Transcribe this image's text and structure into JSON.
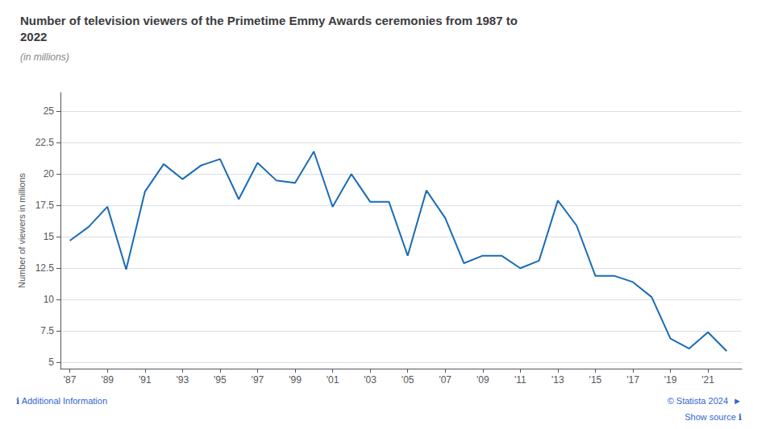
{
  "chart_data": {
    "type": "line",
    "title": "Number of television viewers of the Primetime Emmy Awards ceremonies from 1987 to\n2022",
    "subtitle": "(in millions)",
    "ylabel": "Number of viewers in millions",
    "x": [
      1987,
      1988,
      1989,
      1990,
      1991,
      1992,
      1993,
      1994,
      1995,
      1996,
      1997,
      1998,
      1999,
      2000,
      2001,
      2002,
      2003,
      2004,
      2005,
      2006,
      2007,
      2008,
      2009,
      2010,
      2011,
      2012,
      2013,
      2014,
      2015,
      2016,
      2017,
      2018,
      2019,
      2020,
      2021,
      2022
    ],
    "values": [
      14.7,
      15.8,
      17.4,
      12.4,
      18.6,
      20.8,
      19.6,
      20.7,
      21.2,
      18.0,
      20.9,
      19.5,
      19.3,
      21.8,
      17.4,
      20.0,
      17.8,
      17.8,
      13.5,
      18.7,
      16.5,
      12.9,
      13.5,
      13.5,
      12.5,
      13.1,
      17.9,
      15.9,
      11.9,
      11.9,
      11.4,
      10.2,
      6.9,
      6.1,
      7.4,
      5.9
    ],
    "color": "#1a6bb5",
    "xlim": [
      1986.5,
      2022.8
    ],
    "xticks": [
      {
        "value": 1987,
        "label": "'87"
      },
      {
        "value": 1989,
        "label": "'89"
      },
      {
        "value": 1991,
        "label": "'91"
      },
      {
        "value": 1993,
        "label": "'93"
      },
      {
        "value": 1995,
        "label": "'95"
      },
      {
        "value": 1997,
        "label": "'97"
      },
      {
        "value": 1999,
        "label": "'99"
      },
      {
        "value": 2001,
        "label": "'01"
      },
      {
        "value": 2003,
        "label": "'03"
      },
      {
        "value": 2005,
        "label": "'05"
      },
      {
        "value": 2007,
        "label": "'07"
      },
      {
        "value": 2009,
        "label": "'09"
      },
      {
        "value": 2011,
        "label": "'11"
      },
      {
        "value": 2013,
        "label": "'13"
      },
      {
        "value": 2015,
        "label": "'15"
      },
      {
        "value": 2017,
        "label": "'17"
      },
      {
        "value": 2019,
        "label": "'19"
      },
      {
        "value": 2021,
        "label": "'21"
      }
    ],
    "ylim": [
      4.5,
      26.5
    ],
    "yticks": [
      5,
      7.5,
      10,
      12.5,
      15,
      17.5,
      20,
      22.5,
      25
    ],
    "grid": true,
    "annotations": [
      "© Statista 2024  ►",
      "ℹ Additional Information",
      "Show source ℹ"
    ]
  }
}
